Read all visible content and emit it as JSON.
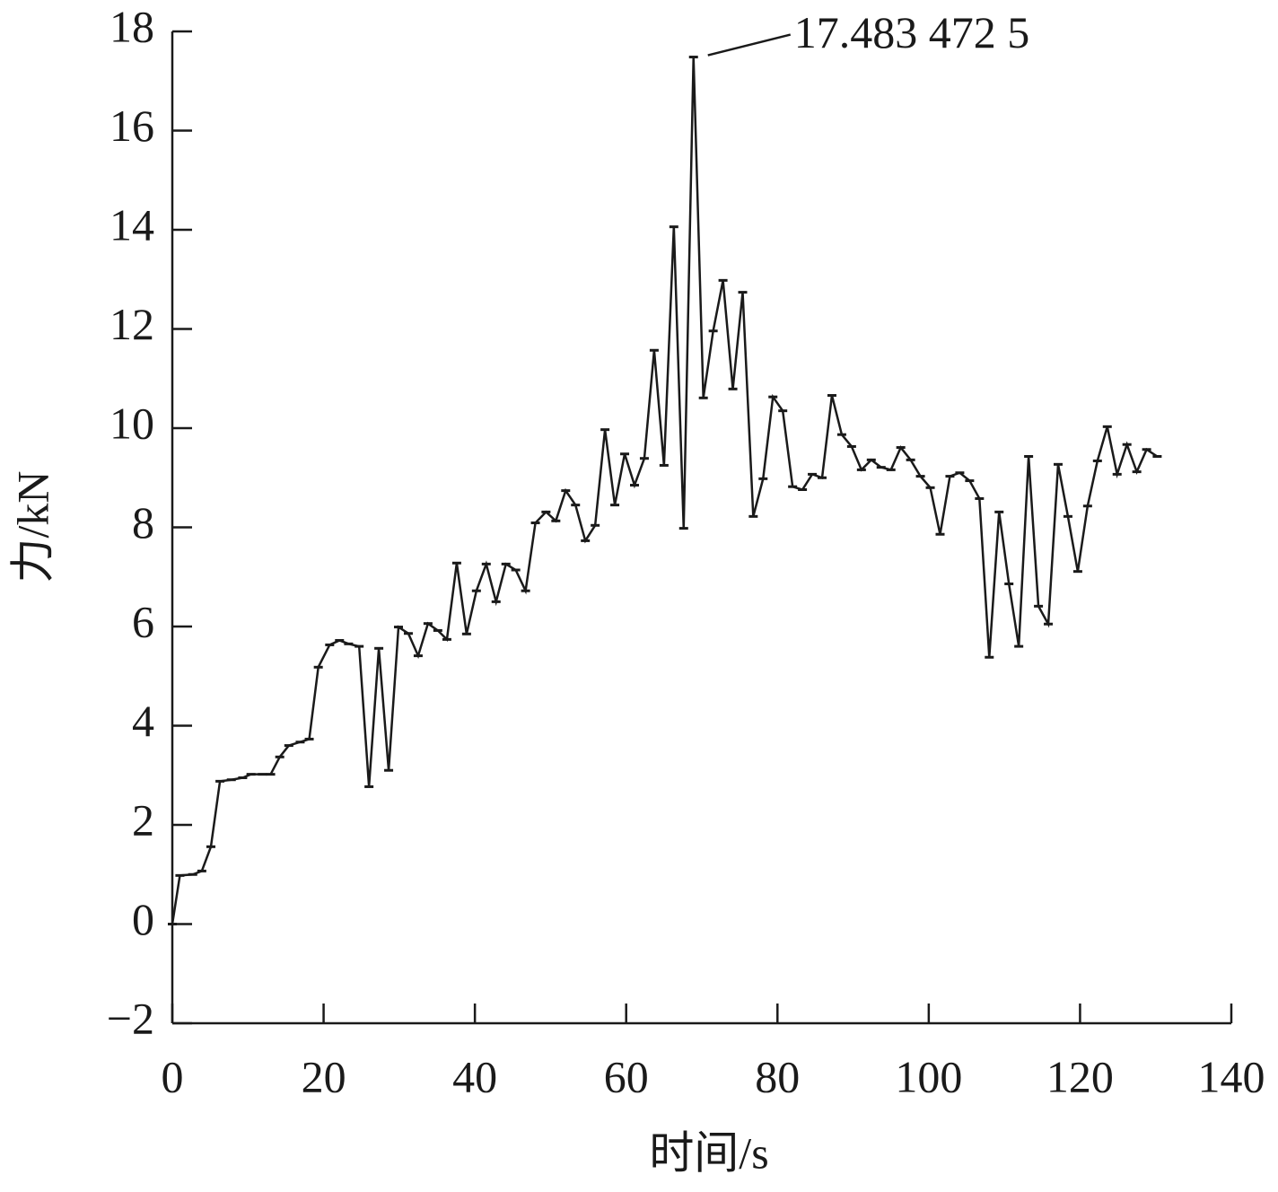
{
  "chart_data": {
    "type": "line",
    "x_label": "时间/s",
    "y_label": "力/kN",
    "annotation": "17.483 472 5",
    "color": "#1a1a1a",
    "x": [
      0,
      1,
      2.7,
      3.9,
      5.1,
      6.3,
      7.8,
      9.3,
      10.4,
      11.9,
      13,
      14.2,
      15.4,
      16.9,
      18.1,
      19.3,
      20.8,
      22.1,
      23.3,
      24.7,
      26,
      27.3,
      28.6,
      29.9,
      31.2,
      32.5,
      33.8,
      35.1,
      36.3,
      37.6,
      38.9,
      40.2,
      41.5,
      42.8,
      44.1,
      45.4,
      46.7,
      48,
      49.4,
      50.7,
      52,
      53.3,
      54.6,
      55.9,
      57.2,
      58.5,
      59.8,
      61.1,
      62.4,
      63.7,
      65,
      66.3,
      67.6,
      68.9,
      70.2,
      71.5,
      72.8,
      74.1,
      75.4,
      76.8,
      78.1,
      79.4,
      80.7,
      82,
      83.3,
      84.6,
      85.9,
      87.2,
      88.5,
      89.8,
      91.1,
      92.4,
      93.7,
      95,
      96.3,
      97.6,
      98.9,
      100.2,
      101.5,
      102.8,
      104.1,
      105.4,
      106.7,
      108,
      109.3,
      110.6,
      111.9,
      113.2,
      114.5,
      115.8,
      117.1,
      118.4,
      119.7,
      121,
      122.3,
      123.6,
      124.9,
      126.2,
      127.5,
      128.8,
      130.2
    ],
    "values": [
      0,
      0.98,
      1.0,
      1.07,
      1.56,
      2.88,
      2.91,
      2.95,
      3.02,
      3.02,
      3.02,
      3.37,
      3.6,
      3.67,
      3.73,
      5.18,
      5.63,
      5.72,
      5.65,
      5.6,
      2.77,
      5.56,
      3.1,
      5.99,
      5.86,
      5.41,
      6.06,
      5.92,
      5.74,
      7.28,
      5.85,
      6.72,
      7.26,
      6.5,
      7.26,
      7.14,
      6.72,
      8.09,
      8.31,
      8.13,
      8.74,
      8.45,
      7.73,
      8.04,
      9.97,
      8.45,
      9.48,
      8.85,
      9.39,
      11.57,
      9.25,
      14.06,
      7.98,
      17.4834725,
      10.61,
      11.96,
      12.98,
      10.79,
      12.74,
      8.22,
      8.98,
      10.63,
      10.35,
      8.82,
      8.76,
      9.07,
      9.0,
      10.66,
      9.87,
      9.63,
      9.16,
      9.36,
      9.21,
      9.16,
      9.61,
      9.36,
      9.03,
      8.8,
      7.86,
      9.03,
      9.1,
      8.94,
      8.58,
      5.38,
      8.31,
      6.86,
      5.6,
      9.43,
      6.41,
      6.05,
      9.27,
      8.22,
      7.11,
      8.43,
      9.34,
      10.03,
      9.07,
      9.67,
      9.12,
      9.57,
      9.43
    ],
    "xlim": [
      0,
      140
    ],
    "xticks": [
      0,
      20,
      40,
      60,
      80,
      100,
      120,
      140
    ],
    "ylim": [
      -2,
      18
    ],
    "yticks": [
      {
        "value": -2,
        "label": "−2"
      },
      0,
      2,
      4,
      6,
      8,
      10,
      12,
      14,
      16,
      18
    ]
  }
}
